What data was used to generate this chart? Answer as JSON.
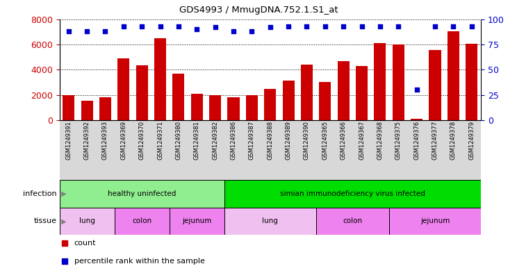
{
  "title": "GDS4993 / MmugDNA.752.1.S1_at",
  "samples": [
    "GSM1249391",
    "GSM1249392",
    "GSM1249393",
    "GSM1249369",
    "GSM1249370",
    "GSM1249371",
    "GSM1249380",
    "GSM1249381",
    "GSM1249382",
    "GSM1249386",
    "GSM1249387",
    "GSM1249388",
    "GSM1249389",
    "GSM1249390",
    "GSM1249365",
    "GSM1249366",
    "GSM1249367",
    "GSM1249368",
    "GSM1249375",
    "GSM1249376",
    "GSM1249377",
    "GSM1249378",
    "GSM1249379"
  ],
  "counts": [
    1950,
    1550,
    1800,
    4900,
    4350,
    6500,
    3700,
    2100,
    1950,
    1800,
    1950,
    2450,
    3150,
    4400,
    3000,
    4650,
    4300,
    6100,
    6000,
    100,
    5550,
    7050,
    6050
  ],
  "percentile_ranks": [
    88,
    88,
    88,
    93,
    93,
    93,
    93,
    90,
    92,
    88,
    88,
    92,
    93,
    93,
    93,
    93,
    93,
    93,
    93,
    30,
    93,
    93,
    93
  ],
  "bar_color": "#cc0000",
  "dot_color": "#0000cc",
  "ylim_left": [
    0,
    8000
  ],
  "ylim_right": [
    0,
    100
  ],
  "yticks_left": [
    0,
    2000,
    4000,
    6000,
    8000
  ],
  "yticks_right": [
    0,
    25,
    50,
    75,
    100
  ],
  "infection_groups": [
    {
      "label": "healthy uninfected",
      "start": 0,
      "end": 8,
      "color": "#90ee90"
    },
    {
      "label": "simian immunodeficiency virus infected",
      "start": 9,
      "end": 22,
      "color": "#00dd00"
    }
  ],
  "tissue_groups": [
    {
      "label": "lung",
      "start": 0,
      "end": 2,
      "color": "#f0c0f0"
    },
    {
      "label": "colon",
      "start": 3,
      "end": 5,
      "color": "#ee82ee"
    },
    {
      "label": "jejunum",
      "start": 6,
      "end": 8,
      "color": "#ee82ee"
    },
    {
      "label": "lung",
      "start": 9,
      "end": 13,
      "color": "#f0c0f0"
    },
    {
      "label": "colon",
      "start": 14,
      "end": 17,
      "color": "#ee82ee"
    },
    {
      "label": "jejunum",
      "start": 18,
      "end": 22,
      "color": "#ee82ee"
    }
  ]
}
